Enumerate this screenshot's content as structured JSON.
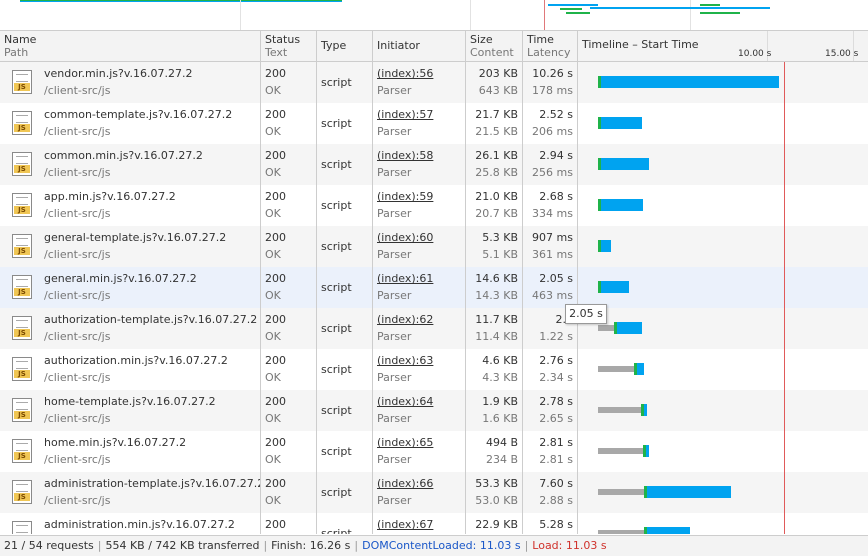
{
  "columns": {
    "name": {
      "title": "Name",
      "sub": "Path"
    },
    "status": {
      "title": "Status",
      "sub": "Text"
    },
    "type": {
      "title": "Type"
    },
    "initiator": {
      "title": "Initiator"
    },
    "size": {
      "title": "Size",
      "sub": "Content"
    },
    "time": {
      "title": "Time",
      "sub": "Latency"
    },
    "timeline": {
      "title": "Timeline – Start Time"
    }
  },
  "timeline_ticks": [
    "10.00 s",
    "15.00 s"
  ],
  "requests": [
    {
      "name": "vendor.min.js?v.16.07.27.2",
      "path": "/client-src/js",
      "status": "200",
      "status_text": "OK",
      "type": "script",
      "initiator": "(index):56",
      "initiator_sub": "Parser",
      "size": "203 KB",
      "content": "643 KB",
      "time": "10.26 s",
      "latency": "178 ms",
      "timing": {
        "start_s": 0.0,
        "wait_s": 0.0,
        "ttfb_s": 0.2,
        "download_s": 10.0
      }
    },
    {
      "name": "common-template.js?v.16.07.27.2",
      "path": "/client-src/js",
      "status": "200",
      "status_text": "OK",
      "type": "script",
      "initiator": "(index):57",
      "initiator_sub": "Parser",
      "size": "21.7 KB",
      "content": "21.5 KB",
      "time": "2.52 s",
      "latency": "206 ms",
      "timing": {
        "start_s": 0.0,
        "wait_s": 0.0,
        "ttfb_s": 0.2,
        "download_s": 2.3
      }
    },
    {
      "name": "common.min.js?v.16.07.27.2",
      "path": "/client-src/js",
      "status": "200",
      "status_text": "OK",
      "type": "script",
      "initiator": "(index):58",
      "initiator_sub": "Parser",
      "size": "26.1 KB",
      "content": "25.8 KB",
      "time": "2.94 s",
      "latency": "256 ms",
      "timing": {
        "start_s": 0.0,
        "wait_s": 0.0,
        "ttfb_s": 0.26,
        "download_s": 2.68
      }
    },
    {
      "name": "app.min.js?v.16.07.27.2",
      "path": "/client-src/js",
      "status": "200",
      "status_text": "OK",
      "type": "script",
      "initiator": "(index):59",
      "initiator_sub": "Parser",
      "size": "21.0 KB",
      "content": "20.7 KB",
      "time": "2.68 s",
      "latency": "334 ms",
      "timing": {
        "start_s": 0.0,
        "wait_s": 0.0,
        "ttfb_s": 0.33,
        "download_s": 2.35
      }
    },
    {
      "name": "general-template.js?v.16.07.27.2",
      "path": "/client-src/js",
      "status": "200",
      "status_text": "OK",
      "type": "script",
      "initiator": "(index):60",
      "initiator_sub": "Parser",
      "size": "5.3 KB",
      "content": "5.1 KB",
      "time": "907 ms",
      "latency": "361 ms",
      "timing": {
        "start_s": 0.0,
        "wait_s": 0.0,
        "ttfb_s": 0.36,
        "download_s": 0.55
      }
    },
    {
      "name": "general.min.js?v.16.07.27.2",
      "path": "/client-src/js",
      "status": "200",
      "status_text": "OK",
      "type": "script",
      "initiator": "(index):61",
      "initiator_sub": "Parser",
      "size": "14.6 KB",
      "content": "14.3 KB",
      "time": "2.05 s",
      "latency": "463 ms",
      "timing": {
        "start_s": 0.0,
        "wait_s": 0.0,
        "ttfb_s": 0.46,
        "download_s": 1.59
      }
    },
    {
      "name": "authorization-template.js?v.16.07.27.2",
      "path": "/client-src/js",
      "status": "200",
      "status_text": "OK",
      "type": "script",
      "initiator": "(index):62",
      "initiator_sub": "Parser",
      "size": "11.7 KB",
      "content": "11.4 KB",
      "time": "2.3",
      "latency": "1.22 s",
      "timing": {
        "start_s": 0.0,
        "wait_s": 0.9,
        "ttfb_s": 0.3,
        "download_s": 1.4
      }
    },
    {
      "name": "authorization.min.js?v.16.07.27.2",
      "path": "/client-src/js",
      "status": "200",
      "status_text": "OK",
      "type": "script",
      "initiator": "(index):63",
      "initiator_sub": "Parser",
      "size": "4.6 KB",
      "content": "4.3 KB",
      "time": "2.76 s",
      "latency": "2.34 s",
      "timing": {
        "start_s": 0.0,
        "wait_s": 2.0,
        "ttfb_s": 0.34,
        "download_s": 0.42
      }
    },
    {
      "name": "home-template.js?v.16.07.27.2",
      "path": "/client-src/js",
      "status": "200",
      "status_text": "OK",
      "type": "script",
      "initiator": "(index):64",
      "initiator_sub": "Parser",
      "size": "1.9 KB",
      "content": "1.6 KB",
      "time": "2.78 s",
      "latency": "2.65 s",
      "timing": {
        "start_s": 0.0,
        "wait_s": 2.4,
        "ttfb_s": 0.25,
        "download_s": 0.13
      }
    },
    {
      "name": "home.min.js?v.16.07.27.2",
      "path": "/client-src/js",
      "status": "200",
      "status_text": "OK",
      "type": "script",
      "initiator": "(index):65",
      "initiator_sub": "Parser",
      "size": "494 B",
      "content": "234 B",
      "time": "2.81 s",
      "latency": "2.81 s",
      "timing": {
        "start_s": 0.0,
        "wait_s": 2.5,
        "ttfb_s": 0.3,
        "download_s": 0.01
      }
    },
    {
      "name": "administration-template.js?v.16.07.27.2",
      "path": "/client-src/js",
      "status": "200",
      "status_text": "OK",
      "type": "script",
      "initiator": "(index):66",
      "initiator_sub": "Parser",
      "size": "53.3 KB",
      "content": "53.0 KB",
      "time": "7.60 s",
      "latency": "2.88 s",
      "timing": {
        "start_s": 0.0,
        "wait_s": 2.6,
        "ttfb_s": 0.28,
        "download_s": 4.72
      }
    },
    {
      "name": "administration.min.js?v.16.07.27.2",
      "path": "/client-src/js",
      "status": "200",
      "status_text": "OK",
      "type": "script",
      "initiator": "(index):67",
      "initiator_sub": "Parser",
      "size": "22.9 KB",
      "content": "",
      "time": "5.28 s",
      "latency": "",
      "timing": {
        "start_s": 0.0,
        "wait_s": 2.6,
        "ttfb_s": 0.28,
        "download_s": 2.4
      }
    }
  ],
  "tooltip": "2.05 s",
  "status_bar": {
    "requests": "21 / 54 requests",
    "transferred": "554 KB / 742 KB transferred",
    "finish": "Finish: 16.26 s",
    "dcl": "DOMContentLoaded: 11.03 s",
    "load": "Load: 11.03 s"
  },
  "colors": {
    "waiting": "#a8a8a8",
    "ttfb": "#1fb34a",
    "download": "#00a3f0",
    "load_line": "#e05a5a",
    "dcl": "#1a57c8"
  }
}
